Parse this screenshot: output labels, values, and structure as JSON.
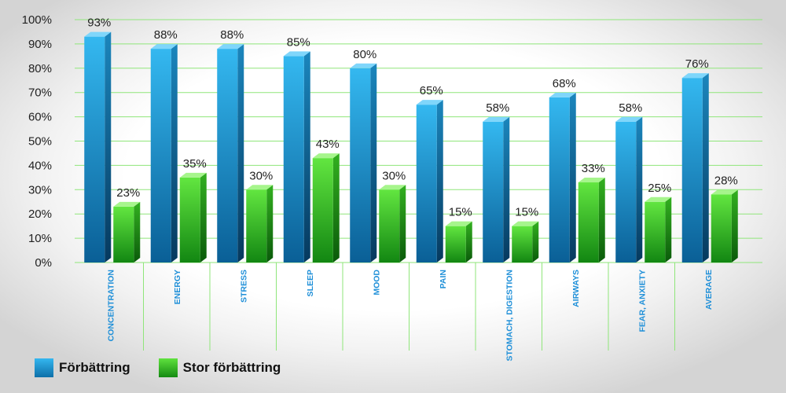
{
  "chart_data": {
    "type": "bar",
    "categories": [
      "CONCENTRATION",
      "ENERGY",
      "STRESS",
      "SLEEP",
      "MOOD",
      "PAIN",
      "STOMACH, DIGESTION",
      "AIRWAYS",
      "FEAR, ANXIETY",
      "AVERAGE"
    ],
    "series": [
      {
        "name": "Förbättring",
        "values": [
          93,
          88,
          88,
          85,
          80,
          65,
          58,
          68,
          58,
          76
        ],
        "labels": [
          "93%",
          "88%",
          "88%",
          "85%",
          "80%",
          "65%",
          "58%",
          "68%",
          "58%",
          "76%"
        ],
        "color": "#1aa4e0"
      },
      {
        "name": "Stor förbättring",
        "values": [
          23,
          35,
          30,
          43,
          30,
          15,
          15,
          33,
          25,
          28
        ],
        "labels": [
          "23%",
          "35%",
          "30%",
          "43%",
          "30%",
          "15%",
          "15%",
          "33%",
          "25%",
          "28%"
        ],
        "color": "#34c41e"
      }
    ],
    "ylim": [
      0,
      100
    ],
    "yticks": [
      "0%",
      "10%",
      "20%",
      "30%",
      "40%",
      "50%",
      "60%",
      "70%",
      "80%",
      "90%",
      "100%"
    ],
    "grid": true,
    "gridColor": "#8fe67a",
    "legend": "bottom-left"
  },
  "legend": {
    "items": [
      {
        "label": "Förbättring",
        "color": "#1aa4e0"
      },
      {
        "label": "Stor förbättring",
        "color": "#34c41e"
      }
    ]
  }
}
